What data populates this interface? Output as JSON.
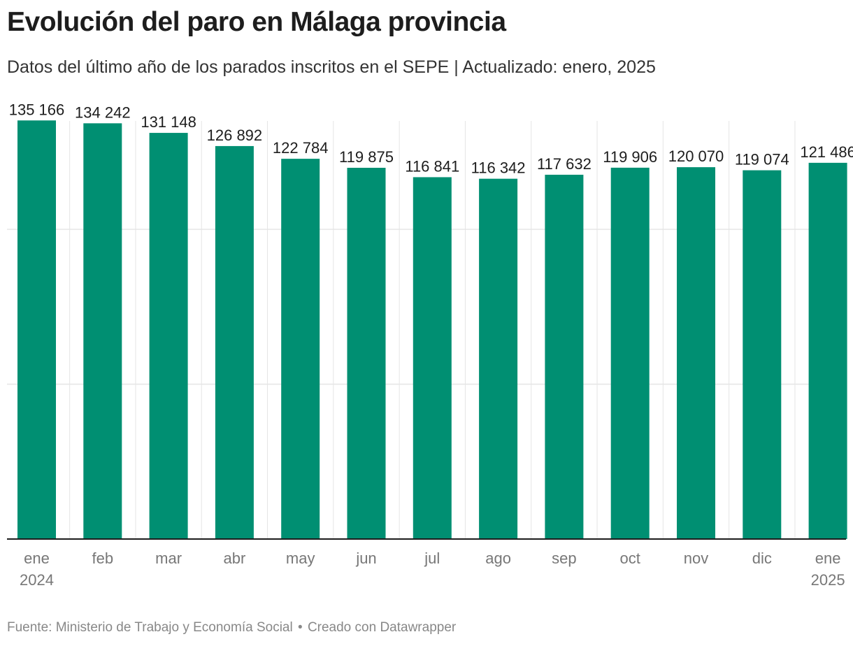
{
  "header": {
    "title": "Evolución del paro en Málaga provincia",
    "subtitle": "Datos del último año de los parados inscritos en el SEPE | Actualizado: enero, 2025"
  },
  "footer": {
    "source": "Fuente: Ministerio de Trabajo y Economía Social",
    "separator": "•",
    "credit": "Creado con Datawrapper"
  },
  "colors": {
    "bar": "#008f72",
    "grid": "#e5e5e5",
    "axis": "#1d1d1d",
    "tick_label": "#777777",
    "value_label": "#1d1d1d"
  },
  "chart_data": {
    "type": "bar",
    "title": "Evolución del paro en Málaga provincia",
    "subtitle": "Datos del último año de los parados inscritos en el SEPE | Actualizado: enero, 2025",
    "xlabel": "",
    "ylabel": "",
    "categories": [
      [
        "ene",
        "2024"
      ],
      [
        "feb"
      ],
      [
        "mar"
      ],
      [
        "abr"
      ],
      [
        "may"
      ],
      [
        "jun"
      ],
      [
        "jul"
      ],
      [
        "ago"
      ],
      [
        "sep"
      ],
      [
        "oct"
      ],
      [
        "nov"
      ],
      [
        "dic"
      ],
      [
        "ene",
        "2025"
      ]
    ],
    "values": [
      135166,
      134242,
      131148,
      126892,
      122784,
      119875,
      116841,
      116342,
      117632,
      119906,
      120070,
      119074,
      121486
    ],
    "value_labels": [
      "135 166",
      "134 242",
      "131 148",
      "126 892",
      "122 784",
      "119 875",
      "116 841",
      "116 342",
      "117 632",
      "119 906",
      "120 070",
      "119 074",
      "121 486"
    ],
    "ylim": [
      0,
      135000
    ],
    "gridlines": [
      0,
      50000,
      100000
    ],
    "grid": true,
    "legend": "none"
  }
}
